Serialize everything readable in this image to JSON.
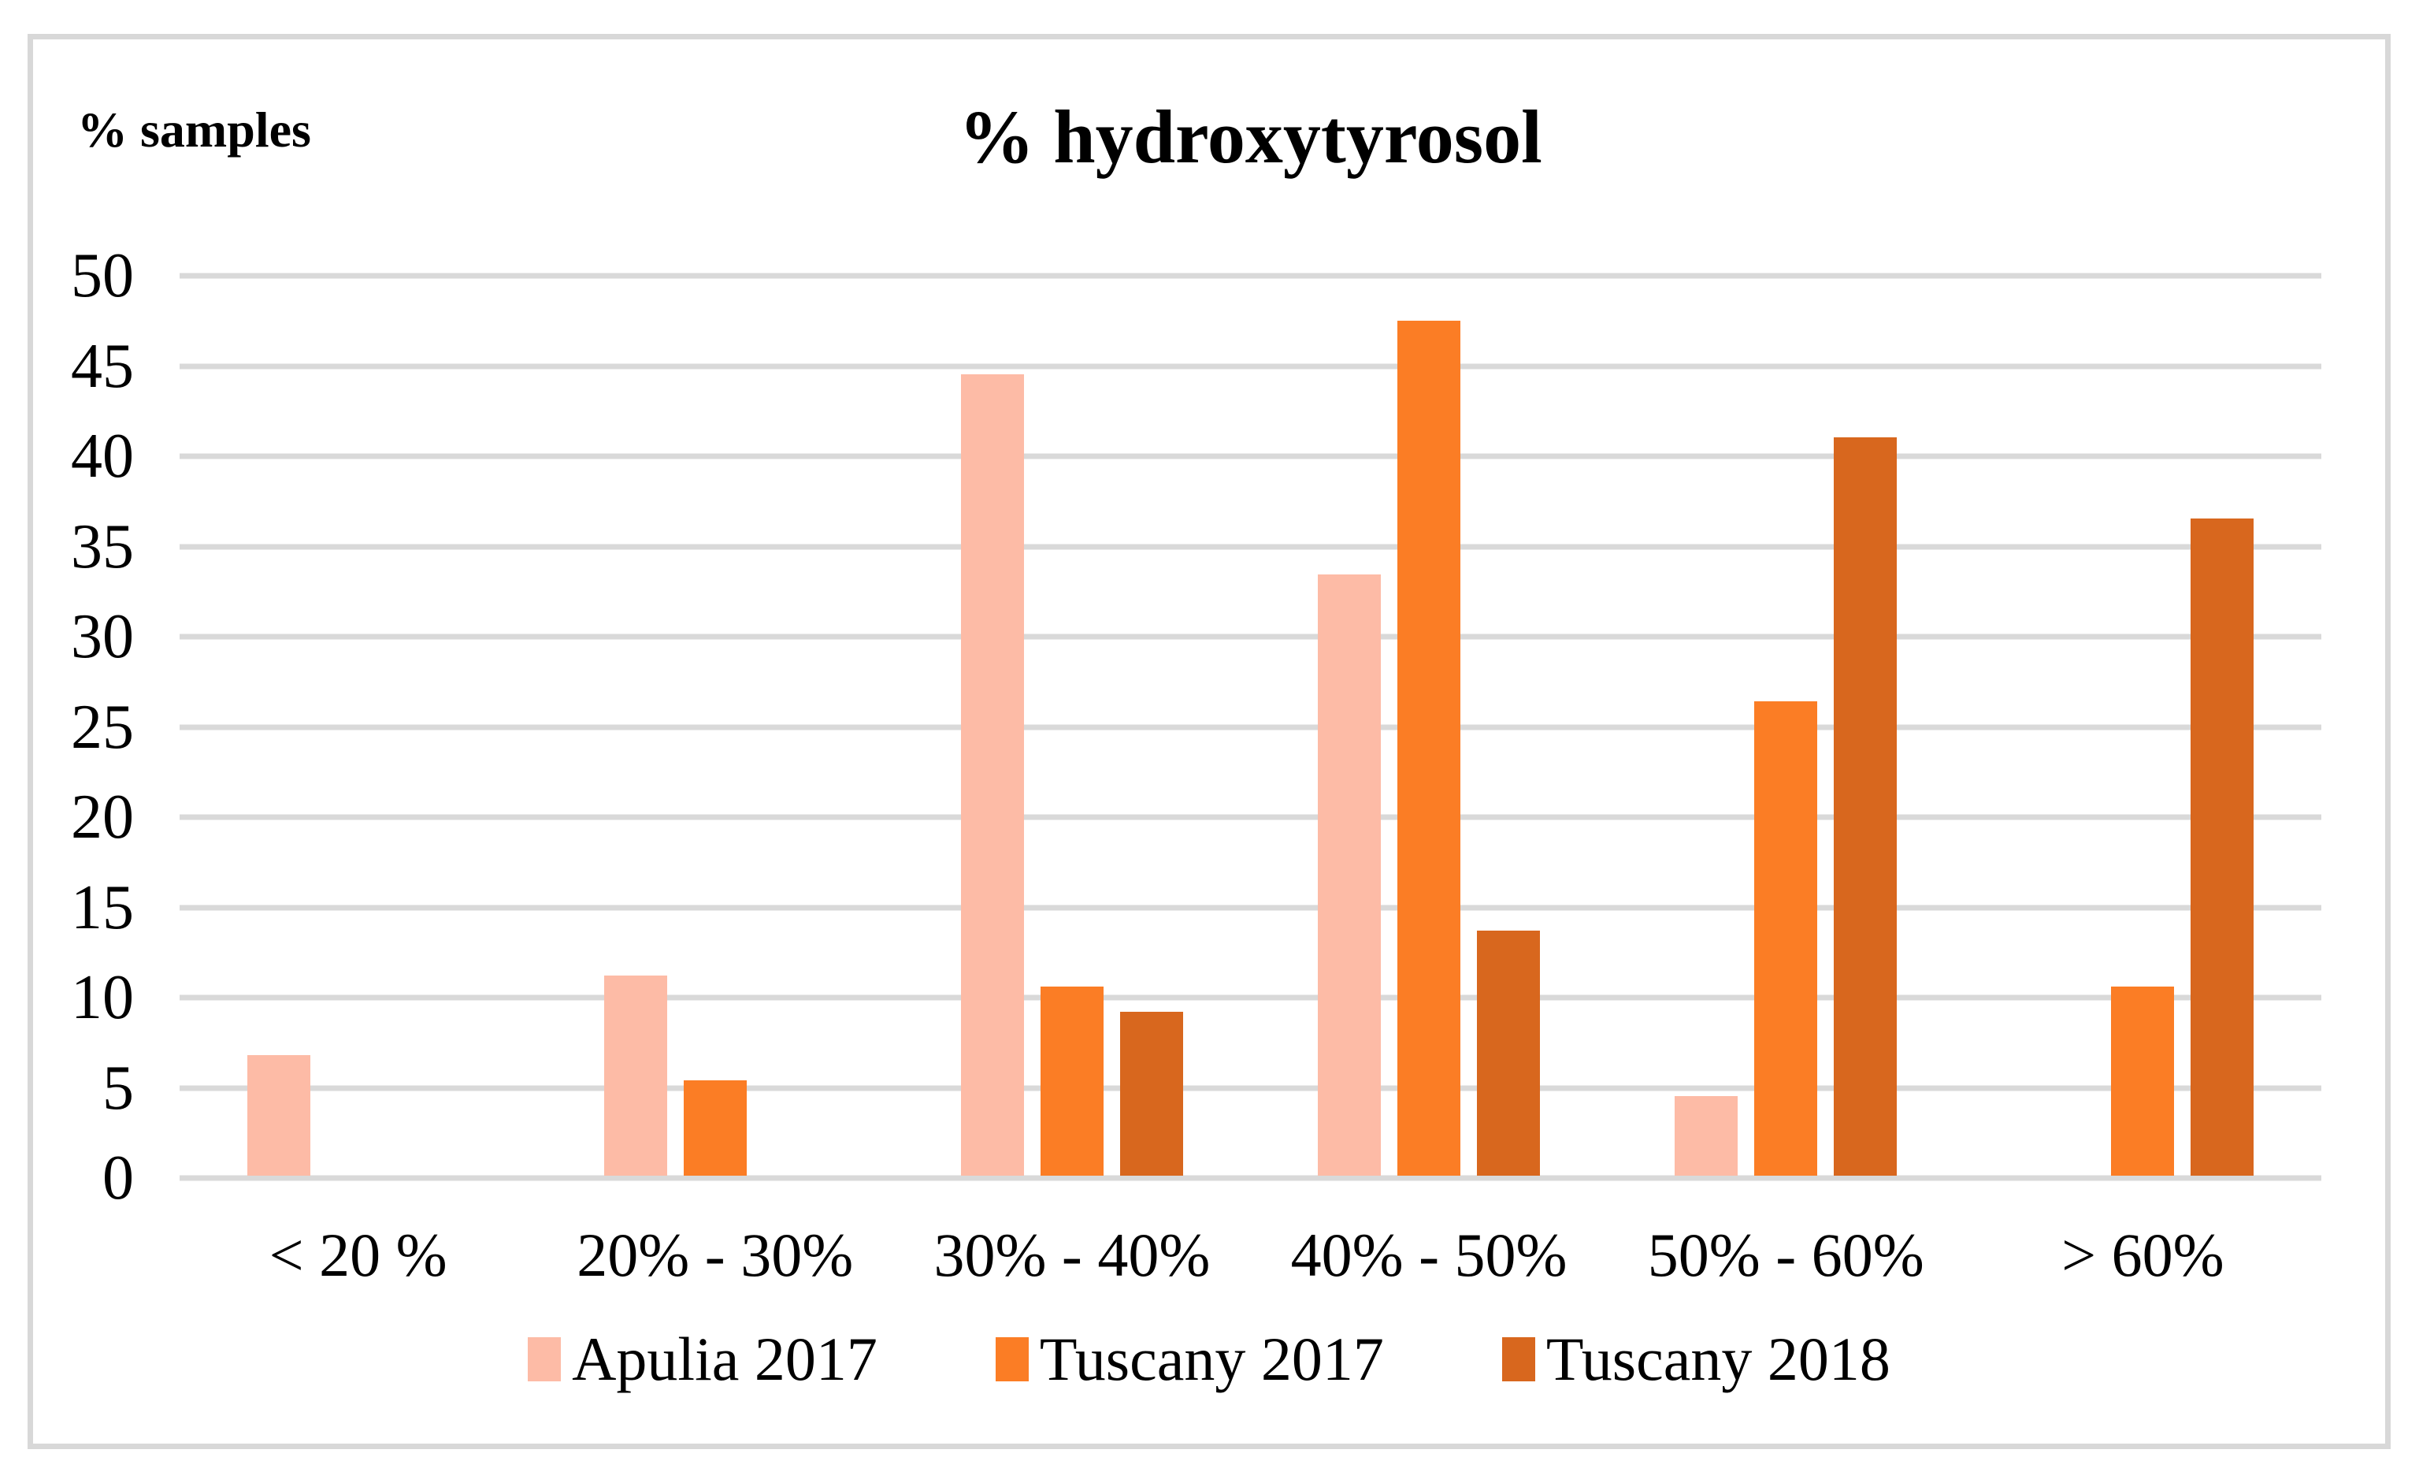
{
  "page": {
    "background": "#FFFFFF",
    "frame_border_color": "#D8D8D8"
  },
  "chart_data": {
    "type": "bar",
    "title": "% hydroxytyrosol",
    "y_axis_label": "% samples",
    "xlabel": "",
    "ylabel": "% samples",
    "categories": [
      "< 20 %",
      "20% - 30%",
      "30% - 40%",
      "40% - 50%",
      "50% - 60%",
      "> 60%"
    ],
    "series": [
      {
        "name": "Apulia 2017",
        "color": "#FDBBA6",
        "values": [
          6.7,
          11.1,
          44.4,
          33.3,
          4.4,
          0
        ]
      },
      {
        "name": "Tuscany 2017",
        "color": "#FB7D25",
        "values": [
          0,
          5.3,
          10.5,
          47.4,
          26.3,
          10.5
        ]
      },
      {
        "name": "Tuscany 2018",
        "color": "#D8671E",
        "values": [
          0,
          0,
          9.1,
          13.6,
          40.9,
          36.4
        ]
      }
    ],
    "ylim": [
      0,
      50
    ],
    "yticks": [
      0,
      5,
      10,
      15,
      20,
      25,
      30,
      35,
      40,
      45,
      50
    ],
    "grid": true,
    "gridline_color": "#D9D9D9",
    "legend_position": "bottom"
  }
}
